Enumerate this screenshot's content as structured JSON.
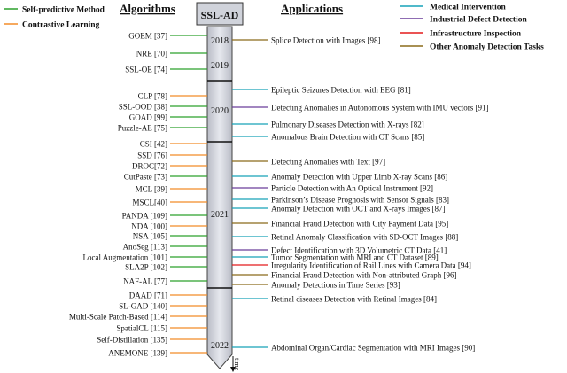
{
  "header": {
    "algorithms": "Algorithms",
    "applications": "Applications",
    "timeline_title": "SSL-AD",
    "time_label": "time"
  },
  "left_legend": [
    {
      "label": "Self-predictive Method",
      "color": "#2ca02c"
    },
    {
      "label": "Contrastive Learning",
      "color": "#f28c28"
    }
  ],
  "right_legend": [
    {
      "label": "Medical Intervention",
      "color": "#17a2b8"
    },
    {
      "label": "Industrial Defect Detection",
      "color": "#6a3d9a"
    },
    {
      "label": "Infrastructure Inspection",
      "color": "#e31a1c"
    },
    {
      "label": "Other Anomaly Detection Tasks",
      "color": "#8b6b1a"
    }
  ],
  "years": [
    "2018",
    "2019",
    "2020",
    "2021",
    "2022"
  ],
  "algorithms": [
    {
      "label": "GOEM [37]",
      "type": "Self-predictive Method"
    },
    {
      "label": "NRE [70]",
      "type": "Self-predictive Method"
    },
    {
      "label": "SSL-OE [74]",
      "type": "Self-predictive Method"
    },
    {
      "label": "CLP [78]",
      "type": "Contrastive Learning"
    },
    {
      "label": "SSL-OOD [38]",
      "type": "Self-predictive Method"
    },
    {
      "label": "GOAD [99]",
      "type": "Self-predictive Method"
    },
    {
      "label": "Puzzle-AE [75]",
      "type": "Self-predictive Method"
    },
    {
      "label": "CSI [42]",
      "type": "Contrastive Learning"
    },
    {
      "label": "SSD [76]",
      "type": "Contrastive Learning"
    },
    {
      "label": "DROC[72]",
      "type": "Contrastive Learning"
    },
    {
      "label": "CutPaste [73]",
      "type": "Self-predictive Method"
    },
    {
      "label": "MCL [39]",
      "type": "Contrastive Learning"
    },
    {
      "label": "MSCL[40]",
      "type": "Contrastive Learning"
    },
    {
      "label": "PANDA [109]",
      "type": "Self-predictive Method"
    },
    {
      "label": "NDA [100]",
      "type": "Contrastive Learning"
    },
    {
      "label": "NSA [105]",
      "type": "Self-predictive Method"
    },
    {
      "label": "AnoSeg [113]",
      "type": "Self-predictive Method"
    },
    {
      "label": "Local Augmentation [101]",
      "type": "Self-predictive Method"
    },
    {
      "label": "SLA2P [102]",
      "type": "Self-predictive Method"
    },
    {
      "label": "NAF-AL [77]",
      "type": "Self-predictive Method"
    },
    {
      "label": "DAAD [71]",
      "type": "Contrastive Learning"
    },
    {
      "label": "SL-GAD [140]",
      "type": "Contrastive Learning"
    },
    {
      "label": "Multi-Scale Patch-Based [114]",
      "type": "Contrastive Learning"
    },
    {
      "label": "SpatialCL [115]",
      "type": "Contrastive Learning"
    },
    {
      "label": "Self-Distillation [135]",
      "type": "Contrastive Learning"
    },
    {
      "label": "ANEMONE [139]",
      "type": "Contrastive Learning"
    }
  ],
  "applications": [
    {
      "label": "Splice Detection with Images [98]",
      "category": "Other Anomaly Detection Tasks"
    },
    {
      "label": "Epileptic Seizures Detection with EEG [81]",
      "category": "Medical Intervention"
    },
    {
      "label": "Detecting Anomalies in Autonomous System with IMU vectors [91]",
      "category": "Industrial Defect Detection"
    },
    {
      "label": "Pulmonary Diseases Detection with X-rays [82]",
      "category": "Medical Intervention"
    },
    {
      "label": "Anomalous Brain Detection with CT Scans [85]",
      "category": "Medical Intervention"
    },
    {
      "label": "Detecting Anomalies with Text [97]",
      "category": "Other Anomaly Detection Tasks"
    },
    {
      "label": "Anomaly Detection with Upper Limb X-ray Scans [86]",
      "category": "Medical Intervention"
    },
    {
      "label": "Particle Detection with An Optical Instrument [92]",
      "category": "Industrial Defect Detection"
    },
    {
      "label": "Parkinson’s Disease Prognosis with Sensor Signals [83]",
      "category": "Medical Intervention"
    },
    {
      "label": "Anomaly Detection with OCT and X-rays Images [87]",
      "category": "Medical Intervention"
    },
    {
      "label": "Financial Fraud Detection with City Payment Data [95]",
      "category": "Other Anomaly Detection Tasks"
    },
    {
      "label": "Retinal Anomaly Classification with SD-OCT Images [88]",
      "category": "Medical Intervention"
    },
    {
      "label": "Defect Identification with 3D Volumetric CT Data [41]",
      "category": "Industrial Defect Detection"
    },
    {
      "label": "Tumor Segmentation with MRI and CT Dataset [89]",
      "category": "Medical Intervention"
    },
    {
      "label": "Irregularity Identification of Rail Lines with Camera Data [94]",
      "category": "Infrastructure Inspection"
    },
    {
      "label": "Financial Fraud Detection with Non-attributed Graph [96]",
      "category": "Other Anomaly Detection Tasks"
    },
    {
      "label": "Anomaly Detections in Time Series [93]",
      "category": "Other Anomaly Detection Tasks"
    },
    {
      "label": "Retinal diseases Detection with Retinal Images [84]",
      "category": "Medical Intervention"
    },
    {
      "label": "Abdominal Organ/Cardiac Segmentation with MRI Images [90]",
      "category": "Medical Intervention"
    }
  ]
}
